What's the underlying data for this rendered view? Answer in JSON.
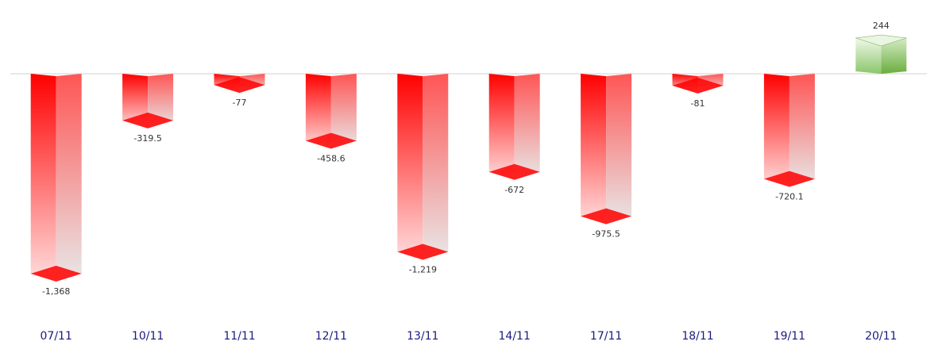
{
  "chart_data": {
    "type": "bar3d",
    "categories": [
      "07/11",
      "10/11",
      "11/11",
      "12/11",
      "13/11",
      "14/11",
      "17/11",
      "18/11",
      "19/11",
      "20/11"
    ],
    "values": [
      -1368,
      -319.5,
      -77,
      -458.6,
      -1219,
      -672,
      -975.5,
      -81,
      -720.1,
      244
    ],
    "value_labels": [
      "-1,368",
      "-319.5",
      "-77",
      "-458.6",
      "-1,219",
      "-672",
      "-975.5",
      "-81",
      "-720.1",
      "244"
    ],
    "negative_color": "#ff0000",
    "positive_color": "#6aad3d"
  }
}
